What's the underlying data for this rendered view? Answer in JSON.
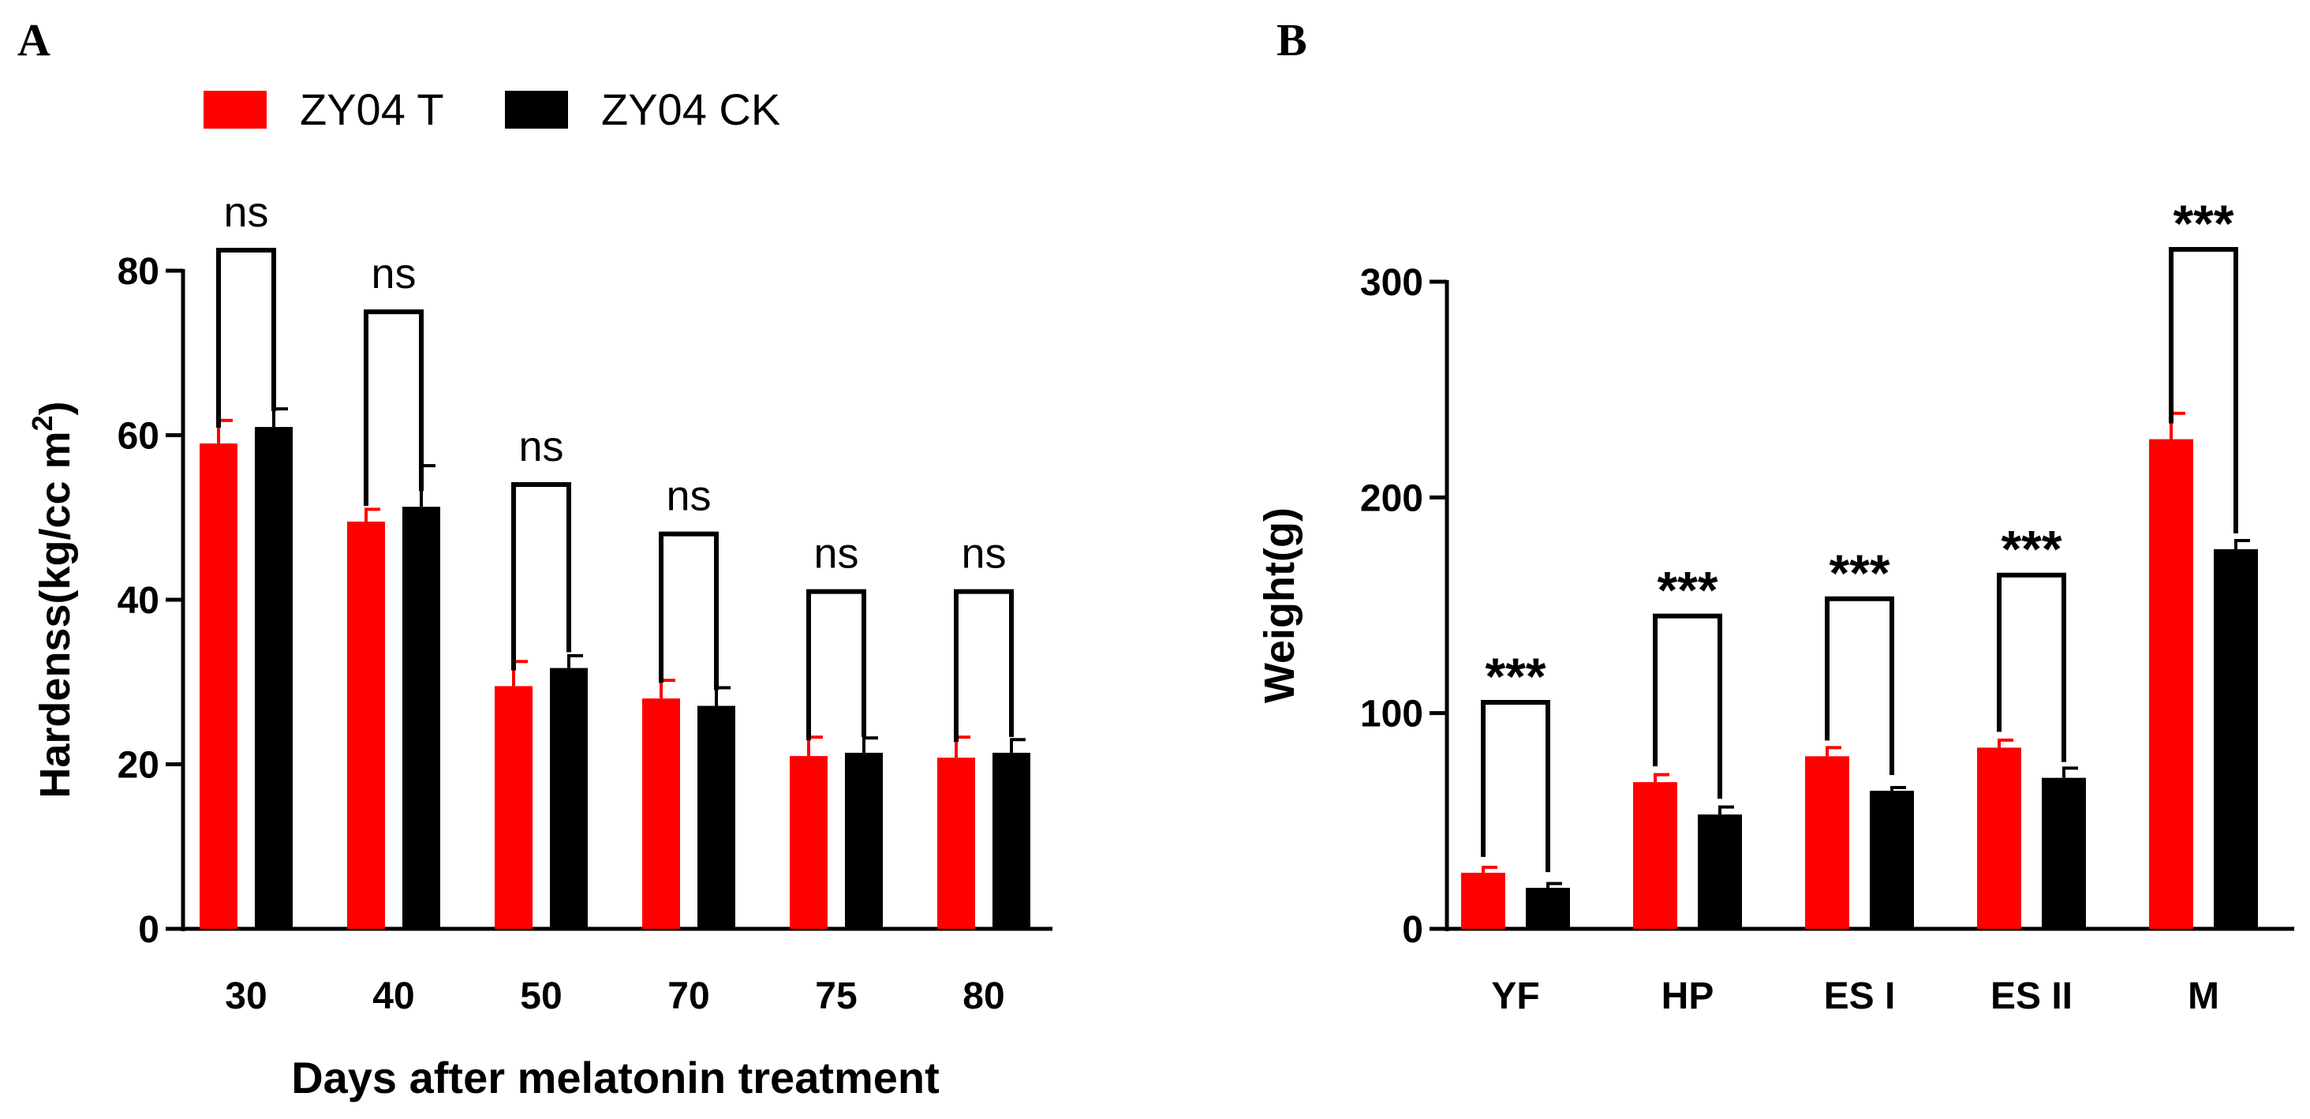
{
  "chart_data": [
    {
      "panel": "A",
      "type": "bar",
      "title": "",
      "xlabel": "Days after melatonin treatment",
      "ylabel_prefix": "Hardenss(kg/cc m",
      "ylabel_sup": "2",
      "ylabel_suffix": ")",
      "ylim": [
        0,
        80
      ],
      "yticks": [
        "0",
        "20",
        "40",
        "60",
        "80"
      ],
      "categories": [
        "30",
        "40",
        "50",
        "70",
        "75",
        "80"
      ],
      "series": [
        {
          "name": "ZY04 T",
          "color": "#ff0000",
          "values": [
            59,
            49.5,
            29.5,
            28,
            21,
            20.8
          ],
          "errors": [
            2.8,
            1.5,
            3,
            2.2,
            2.3,
            2.5
          ]
        },
        {
          "name": "ZY04 CK",
          "color": "#000000",
          "values": [
            61,
            51.3,
            31.7,
            27.1,
            21.4,
            21.4
          ],
          "errors": [
            2.2,
            5,
            1.5,
            2.2,
            1.8,
            1.6
          ]
        }
      ],
      "significance": [
        "ns",
        "ns",
        "ns",
        "ns",
        "ns",
        "ns"
      ],
      "bracket_tops": [
        82.5,
        75,
        54,
        48,
        41,
        41
      ],
      "legend": {
        "position": "top",
        "labels": [
          "ZY04 T",
          "ZY04 CK"
        ]
      }
    },
    {
      "panel": "B",
      "type": "bar",
      "title": "",
      "xlabel": "",
      "ylabel": "Weight(g)",
      "ylim": [
        0,
        300
      ],
      "yticks": [
        "0",
        "100",
        "200",
        "300"
      ],
      "categories": [
        "YF",
        "HP",
        "ES I",
        "ES II",
        "M"
      ],
      "series": [
        {
          "name": "ZY04 T",
          "color": "#ff0000",
          "values": [
            26,
            68,
            80,
            84,
            227
          ],
          "errors": [
            2.5,
            3.5,
            4,
            3.5,
            12
          ]
        },
        {
          "name": "ZY04 CK",
          "color": "#000000",
          "values": [
            19,
            53,
            64,
            70,
            176
          ],
          "errors": [
            2,
            3.5,
            1.5,
            4.5,
            4
          ]
        }
      ],
      "significance": [
        "***",
        "***",
        "***",
        "***",
        "***"
      ],
      "bracket_tops": [
        105,
        145,
        153,
        164,
        315
      ]
    }
  ]
}
